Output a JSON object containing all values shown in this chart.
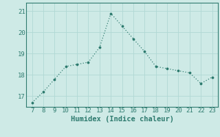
{
  "x": [
    7,
    8,
    9,
    10,
    11,
    12,
    13,
    14,
    15,
    16,
    17,
    18,
    19,
    20,
    21,
    22,
    23
  ],
  "y": [
    16.7,
    17.2,
    17.8,
    18.4,
    18.5,
    18.6,
    19.3,
    20.9,
    20.3,
    19.7,
    19.1,
    18.4,
    18.3,
    18.2,
    18.1,
    17.6,
    17.9
  ],
  "line_color": "#2d7a6e",
  "marker_color": "#2d7a6e",
  "bg_color": "#ceeae6",
  "grid_color": "#b0d8d4",
  "xlabel": "Humidex (Indice chaleur)",
  "ylim": [
    16.5,
    21.4
  ],
  "xlim": [
    6.5,
    23.5
  ],
  "yticks": [
    17,
    18,
    19,
    20,
    21
  ],
  "xticks": [
    7,
    8,
    9,
    10,
    11,
    12,
    13,
    14,
    15,
    16,
    17,
    18,
    19,
    20,
    21,
    22,
    23
  ],
  "label_fontsize": 7.5,
  "tick_fontsize": 6.5
}
